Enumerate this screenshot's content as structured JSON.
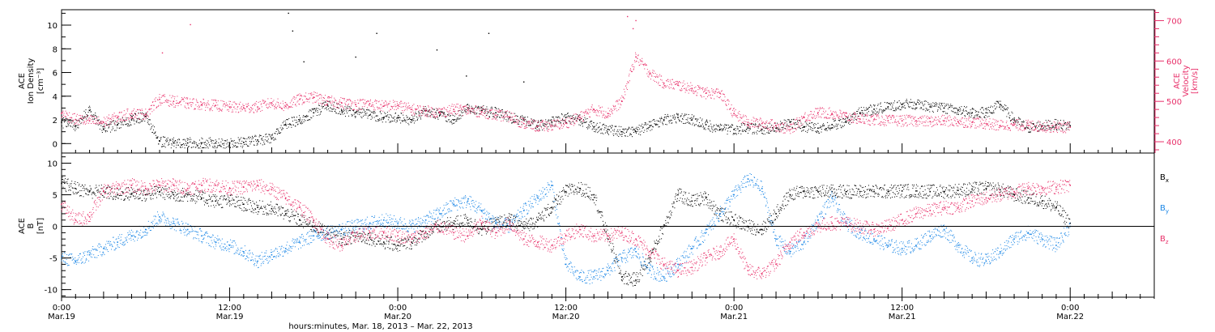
{
  "colors": {
    "black": "#000000",
    "pink": "#e8306a",
    "blue": "#1a86e6",
    "axis": "#000000"
  },
  "panels": {
    "top": {
      "left_label_lines": [
        "ACE",
        "Ion Density",
        "[cm⁻³]"
      ],
      "right_label_lines": [
        "ACE",
        "Velocity",
        "[km/s]"
      ]
    },
    "bottom": {
      "left_label_lines": [
        "ACE",
        "B",
        "[nT]"
      ],
      "legend": [
        {
          "main": "B",
          "sub": "x",
          "color": "#000000"
        },
        {
          "main": "B",
          "sub": "y",
          "color": "#1a86e6"
        },
        {
          "main": "B",
          "sub": "z",
          "color": "#e8306a"
        }
      ]
    }
  },
  "x_axis": {
    "title": "hours:minutes, Mar. 18, 2013 – Mar. 22, 2013",
    "ticks": [
      {
        "hours": 0,
        "time": "0:00",
        "date": "Mar.19"
      },
      {
        "hours": 12,
        "time": "12:00",
        "date": "Mar.19"
      },
      {
        "hours": 24,
        "time": "0:00",
        "date": "Mar.20"
      },
      {
        "hours": 36,
        "time": "12:00",
        "date": "Mar.20"
      },
      {
        "hours": 48,
        "time": "0:00",
        "date": "Mar.21"
      },
      {
        "hours": 60,
        "time": "12:00",
        "date": "Mar.21"
      },
      {
        "hours": 72,
        "time": "0:00",
        "date": "Mar.22"
      }
    ]
  },
  "chart_data": [
    {
      "type": "scatter",
      "title": "",
      "xlabel": "hours:minutes, Mar. 18, 2013 – Mar. 22, 2013",
      "ylabel": "ACE Ion Density [cm⁻³]",
      "y2label": "ACE Velocity [km/s]",
      "xlim": [
        0,
        78
      ],
      "ylim": [
        -0.8,
        11.3
      ],
      "yticks": [
        0,
        2,
        4,
        6,
        8,
        10
      ],
      "y2lim": [
        372,
        727
      ],
      "y2ticks": [
        400,
        500,
        600,
        700
      ],
      "grid": false,
      "series": [
        {
          "name": "",
          "axis": "left",
          "color": "#000000",
          "x": [
            0,
            1,
            2,
            3,
            4,
            5,
            6,
            7,
            8,
            9,
            10,
            11,
            12,
            13,
            14,
            15,
            16,
            17,
            18,
            19,
            20,
            21,
            22,
            23,
            24,
            25,
            26,
            27,
            28,
            29,
            30,
            31,
            32,
            33,
            34,
            35,
            36,
            37,
            38,
            39,
            40,
            41,
            42,
            43,
            44,
            45,
            46,
            47,
            48,
            49,
            50,
            51,
            52,
            53,
            54,
            55,
            56,
            57,
            58,
            59,
            60,
            61,
            62,
            63,
            64,
            65,
            66,
            67,
            68,
            69,
            70,
            71,
            72
          ],
          "y": [
            1.8,
            1.5,
            2.8,
            1.2,
            1.6,
            2.0,
            2.3,
            0.2,
            0.05,
            0.05,
            0.05,
            0.05,
            0.05,
            0.1,
            0.3,
            0.4,
            1.6,
            2.0,
            2.6,
            3.2,
            2.8,
            2.6,
            2.4,
            2.2,
            2.2,
            2.0,
            2.8,
            2.4,
            2.0,
            3.0,
            2.8,
            2.6,
            2.2,
            2.0,
            1.5,
            1.8,
            2.2,
            2.0,
            1.4,
            1.2,
            1.0,
            1.0,
            1.5,
            2.0,
            2.2,
            2.0,
            1.6,
            1.2,
            1.2,
            1.3,
            1.2,
            1.3,
            1.8,
            1.4,
            1.3,
            1.6,
            1.8,
            2.6,
            2.9,
            3.1,
            3.3,
            3.3,
            3.1,
            3.0,
            2.8,
            2.6,
            2.6,
            3.3,
            2.0,
            1.3,
            1.5,
            1.6,
            1.5
          ]
        },
        {
          "name": "",
          "axis": "right",
          "color": "#e8306a",
          "x": [
            0,
            1,
            2,
            3,
            4,
            5,
            6,
            7,
            8,
            9,
            10,
            11,
            12,
            13,
            14,
            15,
            16,
            17,
            18,
            19,
            20,
            21,
            22,
            23,
            24,
            25,
            26,
            27,
            28,
            29,
            30,
            31,
            32,
            33,
            34,
            35,
            36,
            37,
            38,
            39,
            40,
            41,
            42,
            43,
            44,
            45,
            46,
            47,
            48,
            49,
            50,
            51,
            52,
            53,
            54,
            55,
            56,
            57,
            58,
            59,
            60,
            61,
            62,
            63,
            64,
            65,
            66,
            67,
            68,
            69,
            70,
            71,
            72
          ],
          "y": [
            470,
            455,
            452,
            448,
            460,
            470,
            468,
            505,
            500,
            495,
            492,
            490,
            486,
            484,
            486,
            496,
            488,
            505,
            510,
            500,
            496,
            492,
            494,
            488,
            490,
            480,
            476,
            472,
            480,
            478,
            474,
            466,
            462,
            445,
            438,
            440,
            446,
            460,
            480,
            470,
            500,
            610,
            570,
            545,
            540,
            532,
            520,
            520,
            470,
            448,
            445,
            440,
            430,
            460,
            472,
            470,
            462,
            456,
            455,
            452,
            452,
            452,
            450,
            452,
            450,
            448,
            445,
            440,
            442,
            440,
            438,
            436,
            436
          ]
        },
        {
          "name": "",
          "axis": "left",
          "color": "#000000",
          "style": "outlier",
          "x": [
            16.2,
            16.5,
            17.3,
            21.0,
            22.5,
            26.8,
            28.9,
            30.5,
            33.0
          ],
          "y": [
            11.0,
            9.5,
            6.9,
            7.3,
            9.3,
            7.9,
            5.7,
            9.3,
            5.2
          ]
        },
        {
          "name": "",
          "axis": "right",
          "color": "#e8306a",
          "style": "outlier",
          "x": [
            9.2,
            7.2,
            40.4,
            41.0,
            40.8
          ],
          "y": [
            690,
            620,
            710,
            700,
            680
          ]
        }
      ]
    },
    {
      "type": "scatter",
      "title": "",
      "xlabel": "hours:minutes, Mar. 18, 2013 – Mar. 22, 2013",
      "ylabel": "ACE B [nT]",
      "xlim": [
        0,
        78
      ],
      "ylim": [
        -11.2,
        11.6
      ],
      "yticks": [
        -10,
        -5,
        0,
        5,
        10
      ],
      "zero_line": true,
      "grid": false,
      "series": [
        {
          "name": "Bx",
          "color": "#000000",
          "x": [
            0,
            1,
            2,
            3,
            4,
            5,
            6,
            7,
            8,
            9,
            10,
            11,
            12,
            13,
            14,
            15,
            16,
            17,
            18,
            19,
            20,
            21,
            22,
            23,
            24,
            25,
            26,
            27,
            28,
            29,
            30,
            31,
            32,
            33,
            34,
            35,
            36,
            37,
            38,
            39,
            40,
            41,
            42,
            43,
            44,
            45,
            46,
            47,
            48,
            49,
            50,
            51,
            52,
            53,
            54,
            55,
            56,
            57,
            58,
            59,
            60,
            61,
            62,
            63,
            64,
            65,
            66,
            67,
            68,
            69,
            70,
            71,
            72
          ],
          "y": [
            6.8,
            6.0,
            5.5,
            5.5,
            5.0,
            5.2,
            5.0,
            5.5,
            5.0,
            5.0,
            4.5,
            4.0,
            4.0,
            3.5,
            3.0,
            2.8,
            2.0,
            1.0,
            0.0,
            -1.0,
            -2.0,
            -1.5,
            -1.8,
            -2.5,
            -3.0,
            -2.5,
            -1.0,
            0.0,
            0.5,
            1.0,
            -0.5,
            0.5,
            1.0,
            0.0,
            1.0,
            3.0,
            5.5,
            6.0,
            5.0,
            -1.5,
            -8.0,
            -8.5,
            -5.0,
            0.0,
            5.0,
            4.0,
            4.5,
            2.0,
            1.0,
            0.0,
            -0.5,
            2.0,
            5.0,
            5.5,
            5.5,
            5.5,
            5.5,
            5.5,
            5.5,
            5.5,
            5.6,
            5.6,
            5.5,
            5.5,
            5.7,
            5.9,
            6.0,
            5.8,
            5.0,
            4.5,
            4.0,
            3.0,
            0.5
          ]
        },
        {
          "name": "By",
          "color": "#1a86e6",
          "x": [
            0,
            1,
            2,
            3,
            4,
            5,
            6,
            7,
            8,
            9,
            10,
            11,
            12,
            13,
            14,
            15,
            16,
            17,
            18,
            19,
            20,
            21,
            22,
            23,
            24,
            25,
            26,
            27,
            28,
            29,
            30,
            31,
            32,
            33,
            34,
            35,
            36,
            37,
            38,
            39,
            40,
            41,
            42,
            43,
            44,
            45,
            46,
            47,
            48,
            49,
            50,
            51,
            52,
            53,
            54,
            55,
            56,
            57,
            58,
            59,
            60,
            61,
            62,
            63,
            64,
            65,
            66,
            67,
            68,
            69,
            70,
            71,
            72
          ],
          "y": [
            -5.0,
            -5.5,
            -4.5,
            -3.5,
            -2.5,
            -1.5,
            -0.5,
            1.5,
            0.5,
            -0.5,
            -1.5,
            -2.5,
            -3.0,
            -4.0,
            -5.5,
            -4.5,
            -3.5,
            -2.5,
            -1.5,
            -1.0,
            -0.5,
            0.0,
            0.5,
            1.0,
            0.5,
            0.0,
            1.0,
            2.0,
            3.5,
            4.0,
            2.5,
            0.5,
            0.0,
            2.5,
            4.5,
            6.5,
            -6.0,
            -8.0,
            -8.0,
            -7.0,
            -5.0,
            -4.0,
            -7.0,
            -8.0,
            -6.0,
            -3.5,
            -1.0,
            2.0,
            5.0,
            7.5,
            6.0,
            -2.0,
            -4.0,
            -2.5,
            1.0,
            4.5,
            0.5,
            -1.0,
            -2.0,
            -3.0,
            -3.5,
            -3.0,
            -1.5,
            -0.5,
            -3.0,
            -5.0,
            -5.5,
            -4.0,
            -2.0,
            -1.0,
            -2.0,
            -3.0,
            0.0
          ]
        },
        {
          "name": "Bz",
          "color": "#e8306a",
          "x": [
            0,
            1,
            2,
            3,
            4,
            5,
            6,
            7,
            8,
            9,
            10,
            11,
            12,
            13,
            14,
            15,
            16,
            17,
            18,
            19,
            20,
            21,
            22,
            23,
            24,
            25,
            26,
            27,
            28,
            29,
            30,
            31,
            32,
            33,
            34,
            35,
            36,
            37,
            38,
            39,
            40,
            41,
            42,
            43,
            44,
            45,
            46,
            47,
            48,
            49,
            50,
            51,
            52,
            53,
            54,
            55,
            56,
            57,
            58,
            59,
            60,
            61,
            62,
            63,
            64,
            65,
            66,
            67,
            68,
            69,
            70,
            71,
            72
          ],
          "y": [
            3.5,
            1.0,
            1.5,
            5.5,
            6.0,
            6.5,
            6.0,
            6.5,
            6.5,
            6.0,
            6.5,
            6.5,
            6.0,
            6.2,
            6.5,
            5.8,
            4.5,
            3.0,
            1.0,
            -2.0,
            -3.0,
            -1.5,
            -1.0,
            -1.0,
            -1.5,
            -2.0,
            -1.0,
            0.0,
            -1.0,
            -1.5,
            0.5,
            -1.0,
            0.5,
            -2.0,
            -2.5,
            -3.0,
            -1.5,
            -0.5,
            -1.5,
            -1.5,
            -1.0,
            -2.0,
            -4.0,
            -6.0,
            -7.0,
            -6.5,
            -5.0,
            -4.0,
            -2.0,
            -7.0,
            -7.5,
            -6.0,
            -2.5,
            -1.0,
            0.0,
            0.5,
            0.5,
            0.0,
            -0.5,
            0.0,
            1.0,
            2.0,
            2.5,
            3.0,
            3.0,
            4.0,
            4.5,
            5.0,
            5.5,
            6.0,
            6.0,
            6.2,
            6.5
          ]
        }
      ]
    }
  ]
}
